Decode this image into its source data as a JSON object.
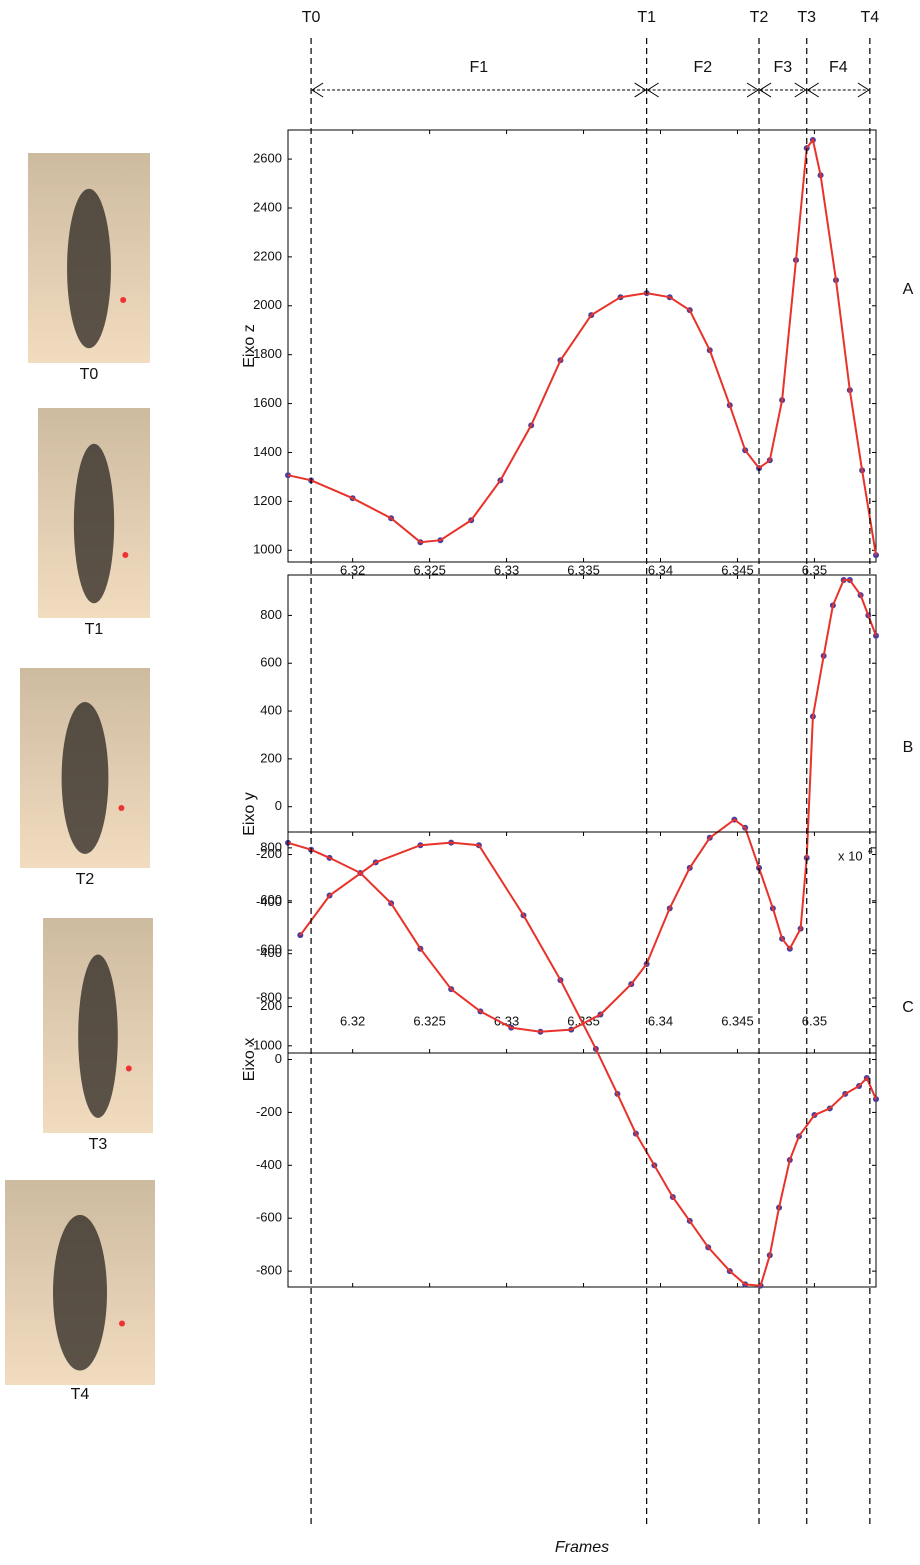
{
  "chart_data": [
    {
      "type": "line",
      "panel_label": "A",
      "ylabel": "Eixo z",
      "x": [
        6.3158,
        6.3173,
        6.32,
        6.3225,
        6.3244,
        6.3257,
        6.3277,
        6.3296,
        6.3316,
        6.3335,
        6.3355,
        6.3374,
        6.3391,
        6.3406,
        6.3419,
        6.3432,
        6.3445,
        6.3455,
        6.3464,
        6.3471,
        6.3479,
        6.3488,
        6.3495,
        6.3499,
        6.3504,
        6.3514,
        6.3523,
        6.3531,
        6.354
      ],
      "series": [
        {
          "color": "#e8322a",
          "marker_color": "#4b3f9e",
          "values": [
            1307,
            1286,
            1213,
            1131,
            1033,
            1041,
            1123,
            1286,
            1511,
            1777,
            1962,
            2035,
            2052,
            2035,
            1982,
            1818,
            1593,
            1409,
            1336,
            1368,
            1614,
            2187,
            2645,
            2678,
            2534,
            2105,
            1655,
            1327,
            980
          ]
        }
      ],
      "xlim": [
        6.3158,
        6.354
      ],
      "xticks": [
        6.32,
        6.325,
        6.33,
        6.335,
        6.34,
        6.345,
        6.35
      ],
      "xticklabels": true,
      "ylim": [
        952,
        2719
      ],
      "yticks": [
        1000,
        1200,
        1400,
        1600,
        1800,
        2000,
        2200,
        2400,
        2600
      ]
    },
    {
      "type": "line",
      "panel_label": "B",
      "ylabel": "Eixo y",
      "x": [
        6.3158,
        6.3173,
        6.3185,
        6.3205,
        6.3225,
        6.3244,
        6.3264,
        6.3283,
        6.3303,
        6.3322,
        6.3342,
        6.3361,
        6.3381,
        6.3391,
        6.3406,
        6.3419,
        6.3432,
        6.3448,
        6.3455,
        6.3464,
        6.3473,
        6.3479,
        6.3484,
        6.3491,
        6.3495,
        6.3499,
        6.3506,
        6.3512,
        6.3519,
        6.3523,
        6.353,
        6.3535,
        6.354
      ],
      "series": [
        {
          "color": "#e8322a",
          "marker_color": "#4b3f9e",
          "values": [
            -151,
            -180,
            -214,
            -277,
            -404,
            -594,
            -763,
            -856,
            -924,
            -941,
            -932,
            -869,
            -742,
            -658,
            -425,
            -256,
            -130,
            -54,
            -88,
            -256,
            -425,
            -552,
            -594,
            -510,
            -214,
            377,
            631,
            842,
            948,
            948,
            885,
            800,
            715
          ]
        }
      ],
      "xlim": [
        6.3158,
        6.354
      ],
      "xticks": [
        6.32,
        6.325,
        6.33,
        6.335,
        6.34,
        6.345,
        6.35
      ],
      "xticklabels": true,
      "ylim": [
        -1030,
        969
      ],
      "yticks": [
        -1000,
        -800,
        -600,
        -400,
        -200,
        0,
        200,
        400,
        600,
        800
      ]
    },
    {
      "type": "line",
      "panel_label": "C",
      "ylabel": "Eixo x",
      "xlabel": "Frames",
      "x_scale_label": "x 10",
      "x_scale_exponent": "4",
      "x": [
        6.3166,
        6.3185,
        6.3215,
        6.3244,
        6.3264,
        6.3282,
        6.3311,
        6.3335,
        6.3358,
        6.3372,
        6.3384,
        6.3396,
        6.3408,
        6.3419,
        6.3431,
        6.3445,
        6.3455,
        6.3465,
        6.3471,
        6.3477,
        6.3484,
        6.349,
        6.35,
        6.351,
        6.352,
        6.3529,
        6.3534,
        6.354
      ],
      "series": [
        {
          "color": "#e8322a",
          "marker_color": "#4b3f9e",
          "values": [
            470,
            620,
            745,
            810,
            820,
            810,
            545,
            300,
            40,
            -130,
            -280,
            -400,
            -520,
            -610,
            -710,
            -800,
            -850,
            -855,
            -740,
            -560,
            -380,
            -290,
            -210,
            -185,
            -130,
            -100,
            -70,
            -150
          ]
        }
      ],
      "xlim": [
        6.3158,
        6.354
      ],
      "xticks": [
        6.32,
        6.325,
        6.33,
        6.335,
        6.34,
        6.345,
        6.35
      ],
      "xticklabels": false,
      "ylim": [
        -860,
        860
      ],
      "yticks": [
        -800,
        -600,
        -400,
        -200,
        0,
        200,
        400,
        600,
        800
      ]
    }
  ],
  "events": [
    {
      "label": "T0",
      "x": 6.3173
    },
    {
      "label": "T1",
      "x": 6.3391
    },
    {
      "label": "T2",
      "x": 6.3464
    },
    {
      "label": "T3",
      "x": 6.3495
    },
    {
      "label": "T4",
      "x": 6.3536
    }
  ],
  "phases": [
    "F1",
    "F2",
    "F3",
    "F4"
  ],
  "photos": [
    "T0",
    "T1",
    "T2",
    "T3",
    "T4"
  ]
}
